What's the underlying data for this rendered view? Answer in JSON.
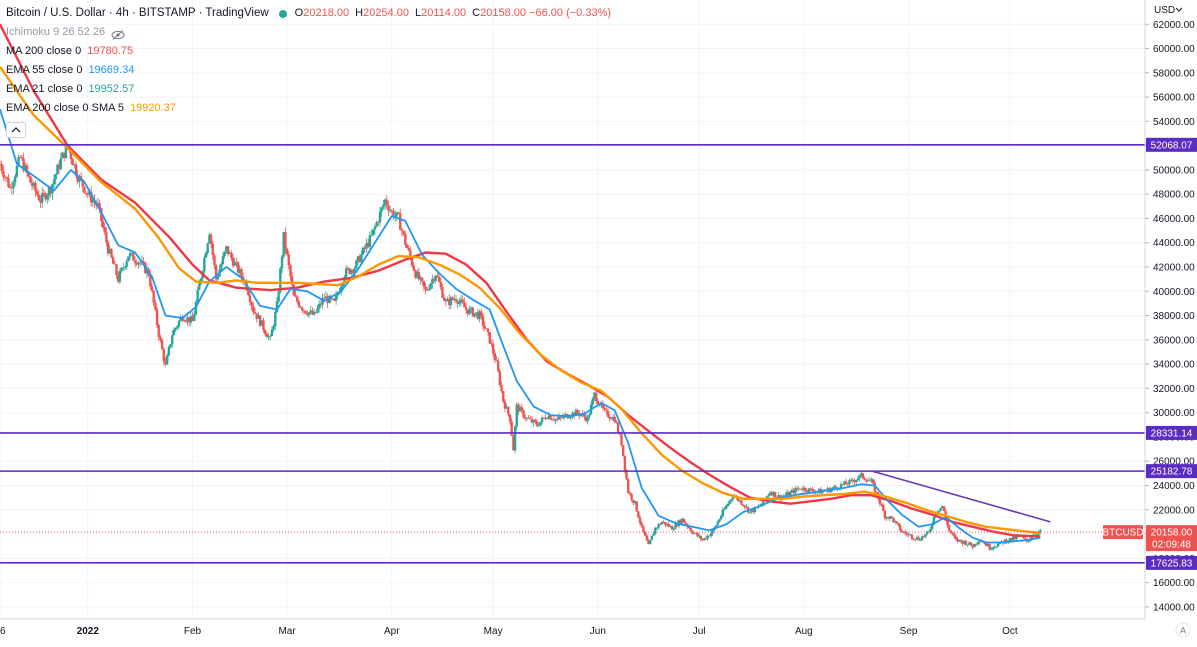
{
  "header": {
    "title": "Bitcoin / U.S. Dollar · 4h · BITSTAMP · TradingView",
    "ohlc": [
      {
        "key": "O",
        "value": "20218.00"
      },
      {
        "key": "H",
        "value": "20254.00"
      },
      {
        "key": "L",
        "value": "20114.00"
      },
      {
        "key": "C",
        "value": "20158.00 −66.00 (−0.33%)"
      }
    ]
  },
  "indicators": [
    {
      "name": "Ichimoku 9 26 52 26",
      "value": "",
      "color": "#9598a1",
      "hidden": true
    },
    {
      "name": "MA 200 close 0",
      "value": "19780.75",
      "color": "#ef5350"
    },
    {
      "name": "EMA 55 close 0",
      "value": "19669.34",
      "color": "#2196f3"
    },
    {
      "name": "EMA 21 close 0",
      "value": "19952.57",
      "color": "#26a69a"
    },
    {
      "name": "EMA 200 close 0 SMA 5",
      "value": "19920.37",
      "color": "#ff9800"
    }
  ],
  "colors": {
    "candle_up": "#26a69a",
    "candle_down": "#ef5350",
    "ma200": "#f23645",
    "ema55": "#2196f3",
    "ema200": "#ff9800",
    "level_line": "#5b2bc4",
    "trendline": "#673ab7",
    "current_price": "#ef5350"
  },
  "chart_data": {
    "type": "candlestick",
    "currency_label": "USD",
    "ylim": [
      13000,
      64000
    ],
    "y_ticks": [
      14000,
      16000,
      18000,
      20000,
      22000,
      24000,
      26000,
      28000,
      30000,
      32000,
      34000,
      36000,
      38000,
      40000,
      42000,
      44000,
      46000,
      48000,
      50000,
      52000,
      54000,
      56000,
      58000,
      60000,
      62000
    ],
    "x_ticks": [
      {
        "label": "6",
        "t": 0,
        "bold": false
      },
      {
        "label": "2022",
        "t": 26,
        "bold": true
      },
      {
        "label": "Feb",
        "t": 57,
        "bold": false
      },
      {
        "label": "Mar",
        "t": 85,
        "bold": false
      },
      {
        "label": "Apr",
        "t": 116,
        "bold": false
      },
      {
        "label": "May",
        "t": 146,
        "bold": false
      },
      {
        "label": "Jun",
        "t": 177,
        "bold": false
      },
      {
        "label": "Jul",
        "t": 207,
        "bold": false
      },
      {
        "label": "Aug",
        "t": 238,
        "bold": false
      },
      {
        "label": "Sep",
        "t": 269,
        "bold": false
      },
      {
        "label": "Oct",
        "t": 299,
        "bold": false
      }
    ],
    "x_range": [
      0,
      339
    ],
    "last_t": 308,
    "horizontal_levels": [
      {
        "value": 52068.07,
        "label": "52068.07"
      },
      {
        "value": 28331.14,
        "label": "28331.14"
      },
      {
        "value": 25182.78,
        "label": "25182.78"
      },
      {
        "value": 17625.83,
        "label": "17625.83"
      }
    ],
    "trendline": {
      "start": {
        "t": 258,
        "v": 25200
      },
      "end": {
        "t": 311,
        "v": 21000
      }
    },
    "current_price": {
      "symbol": "BTCUSD",
      "value": 20158.0,
      "label": "20158.00",
      "countdown": "02:09:48"
    },
    "price_path": [
      [
        0,
        50500
      ],
      [
        3,
        48500
      ],
      [
        6,
        51000
      ],
      [
        9,
        49000
      ],
      [
        12,
        47500
      ],
      [
        15,
        48500
      ],
      [
        18,
        50800
      ],
      [
        20,
        52000
      ],
      [
        23,
        49500
      ],
      [
        26,
        48000
      ],
      [
        29,
        47000
      ],
      [
        32,
        43500
      ],
      [
        35,
        41000
      ],
      [
        38,
        43000
      ],
      [
        41,
        42500
      ],
      [
        44,
        41500
      ],
      [
        47,
        36500
      ],
      [
        49,
        33800
      ],
      [
        51,
        36500
      ],
      [
        54,
        38000
      ],
      [
        57,
        37500
      ],
      [
        60,
        42000
      ],
      [
        62,
        45000
      ],
      [
        64,
        41000
      ],
      [
        67,
        43500
      ],
      [
        70,
        42000
      ],
      [
        73,
        40500
      ],
      [
        75,
        38500
      ],
      [
        78,
        37000
      ],
      [
        80,
        36000
      ],
      [
        82,
        38800
      ],
      [
        84,
        44500
      ],
      [
        87,
        39500
      ],
      [
        90,
        38500
      ],
      [
        93,
        38000
      ],
      [
        96,
        39500
      ],
      [
        99,
        39000
      ],
      [
        102,
        41500
      ],
      [
        105,
        42000
      ],
      [
        108,
        43500
      ],
      [
        110,
        44500
      ],
      [
        112,
        46000
      ],
      [
        114,
        47500
      ],
      [
        116,
        46500
      ],
      [
        118,
        46000
      ],
      [
        120,
        44000
      ],
      [
        123,
        41500
      ],
      [
        126,
        40000
      ],
      [
        129,
        41500
      ],
      [
        132,
        39000
      ],
      [
        135,
        39500
      ],
      [
        138,
        38500
      ],
      [
        142,
        38000
      ],
      [
        145,
        36000
      ],
      [
        147,
        34000
      ],
      [
        149,
        31000
      ],
      [
        151,
        29500
      ],
      [
        152,
        27000
      ],
      [
        153,
        30500
      ],
      [
        156,
        29500
      ],
      [
        159,
        29000
      ],
      [
        162,
        29800
      ],
      [
        165,
        29400
      ],
      [
        168,
        29800
      ],
      [
        171,
        30000
      ],
      [
        174,
        29500
      ],
      [
        176,
        31500
      ],
      [
        179,
        30000
      ],
      [
        182,
        29500
      ],
      [
        184,
        27500
      ],
      [
        186,
        23500
      ],
      [
        188,
        22500
      ],
      [
        190,
        20500
      ],
      [
        192,
        19000
      ],
      [
        194,
        20500
      ],
      [
        196,
        21000
      ],
      [
        199,
        20500
      ],
      [
        202,
        21200
      ],
      [
        205,
        20200
      ],
      [
        208,
        19500
      ],
      [
        211,
        20200
      ],
      [
        214,
        21800
      ],
      [
        217,
        23200
      ],
      [
        220,
        22500
      ],
      [
        222,
        21800
      ],
      [
        225,
        22300
      ],
      [
        228,
        23500
      ],
      [
        231,
        23000
      ],
      [
        234,
        23400
      ],
      [
        237,
        23800
      ],
      [
        240,
        23600
      ],
      [
        243,
        23500
      ],
      [
        246,
        23700
      ],
      [
        249,
        24000
      ],
      [
        252,
        24300
      ],
      [
        255,
        24800
      ],
      [
        258,
        24300
      ],
      [
        260,
        23000
      ],
      [
        262,
        21500
      ],
      [
        264,
        21300
      ],
      [
        267,
        20200
      ],
      [
        270,
        19800
      ],
      [
        272,
        19600
      ],
      [
        275,
        20100
      ],
      [
        277,
        21800
      ],
      [
        279,
        22300
      ],
      [
        281,
        20300
      ],
      [
        283,
        19500
      ],
      [
        286,
        19300
      ],
      [
        288,
        19000
      ],
      [
        290,
        19600
      ],
      [
        293,
        18900
      ],
      [
        296,
        19200
      ],
      [
        298,
        19500
      ],
      [
        300,
        19600
      ],
      [
        302,
        19800
      ],
      [
        304,
        19400
      ],
      [
        306,
        20000
      ],
      [
        308,
        20158
      ]
    ],
    "series": [
      {
        "name": "MA 200 close 0",
        "color": "#f23645",
        "points": [
          [
            0,
            62000
          ],
          [
            10,
            56500
          ],
          [
            20,
            52000
          ],
          [
            30,
            49200
          ],
          [
            40,
            47300
          ],
          [
            50,
            44500
          ],
          [
            57,
            42200
          ],
          [
            62,
            40900
          ],
          [
            70,
            40300
          ],
          [
            80,
            40100
          ],
          [
            88,
            40300
          ],
          [
            96,
            40800
          ],
          [
            104,
            41100
          ],
          [
            112,
            41700
          ],
          [
            120,
            42600
          ],
          [
            126,
            43200
          ],
          [
            132,
            43100
          ],
          [
            138,
            42200
          ],
          [
            144,
            40700
          ],
          [
            150,
            38300
          ],
          [
            156,
            36000
          ],
          [
            162,
            34200
          ],
          [
            168,
            33200
          ],
          [
            174,
            32300
          ],
          [
            180,
            31300
          ],
          [
            186,
            29800
          ],
          [
            192,
            28500
          ],
          [
            198,
            27200
          ],
          [
            204,
            26000
          ],
          [
            210,
            24900
          ],
          [
            216,
            23900
          ],
          [
            222,
            23000
          ],
          [
            228,
            22700
          ],
          [
            234,
            22500
          ],
          [
            240,
            22700
          ],
          [
            246,
            22900
          ],
          [
            252,
            23200
          ],
          [
            258,
            23200
          ],
          [
            264,
            22700
          ],
          [
            270,
            22100
          ],
          [
            276,
            21600
          ],
          [
            282,
            21000
          ],
          [
            288,
            20600
          ],
          [
            294,
            20200
          ],
          [
            300,
            19900
          ],
          [
            308,
            19800
          ]
        ]
      },
      {
        "name": "EMA 55 close 0",
        "color": "#2196f3",
        "points": [
          [
            0,
            55000
          ],
          [
            5,
            50500
          ],
          [
            10,
            49500
          ],
          [
            16,
            48300
          ],
          [
            21,
            50000
          ],
          [
            25,
            49000
          ],
          [
            30,
            46500
          ],
          [
            35,
            43800
          ],
          [
            40,
            43200
          ],
          [
            45,
            41200
          ],
          [
            49,
            38000
          ],
          [
            54,
            37800
          ],
          [
            58,
            38700
          ],
          [
            62,
            40800
          ],
          [
            67,
            42000
          ],
          [
            72,
            41000
          ],
          [
            77,
            38800
          ],
          [
            82,
            38500
          ],
          [
            86,
            40200
          ],
          [
            91,
            40000
          ],
          [
            96,
            39200
          ],
          [
            101,
            40000
          ],
          [
            106,
            41800
          ],
          [
            111,
            44000
          ],
          [
            116,
            46200
          ],
          [
            120,
            45800
          ],
          [
            125,
            43000
          ],
          [
            130,
            41500
          ],
          [
            135,
            40200
          ],
          [
            140,
            39300
          ],
          [
            145,
            38500
          ],
          [
            149,
            35500
          ],
          [
            153,
            32600
          ],
          [
            158,
            30500
          ],
          [
            163,
            29800
          ],
          [
            168,
            29700
          ],
          [
            173,
            29900
          ],
          [
            178,
            30800
          ],
          [
            182,
            30200
          ],
          [
            186,
            27500
          ],
          [
            190,
            23800
          ],
          [
            195,
            21500
          ],
          [
            200,
            20900
          ],
          [
            205,
            20600
          ],
          [
            210,
            20300
          ],
          [
            215,
            20800
          ],
          [
            220,
            21800
          ],
          [
            225,
            22300
          ],
          [
            230,
            22900
          ],
          [
            235,
            23200
          ],
          [
            240,
            23400
          ],
          [
            245,
            23600
          ],
          [
            250,
            23800
          ],
          [
            255,
            24100
          ],
          [
            259,
            24000
          ],
          [
            263,
            22700
          ],
          [
            267,
            21600
          ],
          [
            272,
            20600
          ],
          [
            276,
            20800
          ],
          [
            280,
            21400
          ],
          [
            284,
            20500
          ],
          [
            288,
            19700
          ],
          [
            292,
            19300
          ],
          [
            296,
            19300
          ],
          [
            300,
            19400
          ],
          [
            304,
            19500
          ],
          [
            308,
            19700
          ]
        ]
      },
      {
        "name": "EMA 200 close 0 SMA 5",
        "color": "#ff9800",
        "points": [
          [
            0,
            58500
          ],
          [
            10,
            54500
          ],
          [
            20,
            51800
          ],
          [
            30,
            49000
          ],
          [
            40,
            46800
          ],
          [
            47,
            44400
          ],
          [
            53,
            41900
          ],
          [
            58,
            40800
          ],
          [
            64,
            40700
          ],
          [
            70,
            40900
          ],
          [
            76,
            40700
          ],
          [
            82,
            40700
          ],
          [
            88,
            40700
          ],
          [
            94,
            40600
          ],
          [
            100,
            40500
          ],
          [
            106,
            41200
          ],
          [
            112,
            42200
          ],
          [
            118,
            42900
          ],
          [
            124,
            42800
          ],
          [
            130,
            42200
          ],
          [
            136,
            41400
          ],
          [
            142,
            40300
          ],
          [
            148,
            38600
          ],
          [
            154,
            36500
          ],
          [
            160,
            34800
          ],
          [
            166,
            33500
          ],
          [
            172,
            32500
          ],
          [
            178,
            31800
          ],
          [
            184,
            30300
          ],
          [
            190,
            28300
          ],
          [
            196,
            26500
          ],
          [
            202,
            25200
          ],
          [
            208,
            24200
          ],
          [
            214,
            23400
          ],
          [
            220,
            22900
          ],
          [
            226,
            22900
          ],
          [
            232,
            22900
          ],
          [
            238,
            23100
          ],
          [
            244,
            23200
          ],
          [
            250,
            23300
          ],
          [
            256,
            23500
          ],
          [
            262,
            23100
          ],
          [
            268,
            22600
          ],
          [
            274,
            22000
          ],
          [
            280,
            21500
          ],
          [
            286,
            21000
          ],
          [
            292,
            20600
          ],
          [
            298,
            20400
          ],
          [
            304,
            20200
          ],
          [
            308,
            20100
          ]
        ]
      }
    ]
  }
}
